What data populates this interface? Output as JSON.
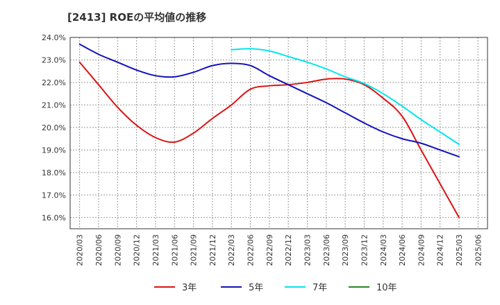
{
  "chart_data": {
    "type": "line",
    "title": "[2413]  ROEの平均値の推移",
    "xlabel": "",
    "ylabel": "",
    "ylim": [
      15.5,
      24.0
    ],
    "yticks": [
      16.0,
      17.0,
      18.0,
      19.0,
      20.0,
      21.0,
      22.0,
      23.0,
      24.0
    ],
    "ytick_labels": [
      "16.0%",
      "17.0%",
      "18.0%",
      "19.0%",
      "20.0%",
      "21.0%",
      "22.0%",
      "23.0%",
      "24.0%"
    ],
    "x_labels": [
      "2020/03",
      "2020/06",
      "2020/09",
      "2020/12",
      "2021/03",
      "2021/06",
      "2021/09",
      "2021/12",
      "2022/03",
      "2022/06",
      "2022/09",
      "2022/12",
      "2023/03",
      "2023/06",
      "2023/09",
      "2023/12",
      "2024/03",
      "2024/06",
      "2024/09",
      "2024/12",
      "2025/03",
      "2025/06"
    ],
    "grid": true,
    "legend_position": "bottom",
    "series": [
      {
        "name": "3年",
        "color": "#dd1111",
        "x": [
          "2020/03",
          "2020/06",
          "2020/09",
          "2020/12",
          "2021/03",
          "2021/06",
          "2021/09",
          "2021/12",
          "2022/03",
          "2022/06",
          "2022/09",
          "2022/12",
          "2023/03",
          "2023/06",
          "2023/09",
          "2023/12",
          "2024/03",
          "2024/06",
          "2024/09",
          "2024/12",
          "2025/03"
        ],
        "values": [
          22.9,
          21.9,
          20.9,
          20.1,
          19.55,
          19.35,
          19.75,
          20.4,
          21.0,
          21.7,
          21.85,
          21.9,
          22.0,
          22.15,
          22.15,
          21.9,
          21.3,
          20.5,
          19.0,
          17.5,
          16.0
        ]
      },
      {
        "name": "5年",
        "color": "#1111bb",
        "x": [
          "2020/03",
          "2020/06",
          "2020/09",
          "2020/12",
          "2021/03",
          "2021/06",
          "2021/09",
          "2021/12",
          "2022/03",
          "2022/06",
          "2022/09",
          "2022/12",
          "2023/03",
          "2023/06",
          "2023/09",
          "2023/12",
          "2024/03",
          "2024/06",
          "2024/09",
          "2024/12",
          "2025/03"
        ],
        "values": [
          23.7,
          23.25,
          22.9,
          22.55,
          22.3,
          22.25,
          22.45,
          22.75,
          22.85,
          22.75,
          22.3,
          21.9,
          21.5,
          21.1,
          20.65,
          20.2,
          19.8,
          19.5,
          19.3,
          19.0,
          18.7
        ]
      },
      {
        "name": "7年",
        "color": "#00e5ee",
        "x": [
          "2022/03",
          "2022/06",
          "2022/09",
          "2022/12",
          "2023/03",
          "2023/06",
          "2023/09",
          "2023/12",
          "2024/03",
          "2024/06",
          "2024/09",
          "2024/12",
          "2025/03"
        ],
        "values": [
          23.45,
          23.5,
          23.4,
          23.15,
          22.9,
          22.6,
          22.25,
          21.95,
          21.5,
          20.95,
          20.35,
          19.8,
          19.25
        ]
      },
      {
        "name": "10年",
        "color": "#228822",
        "x": [],
        "values": []
      }
    ]
  }
}
